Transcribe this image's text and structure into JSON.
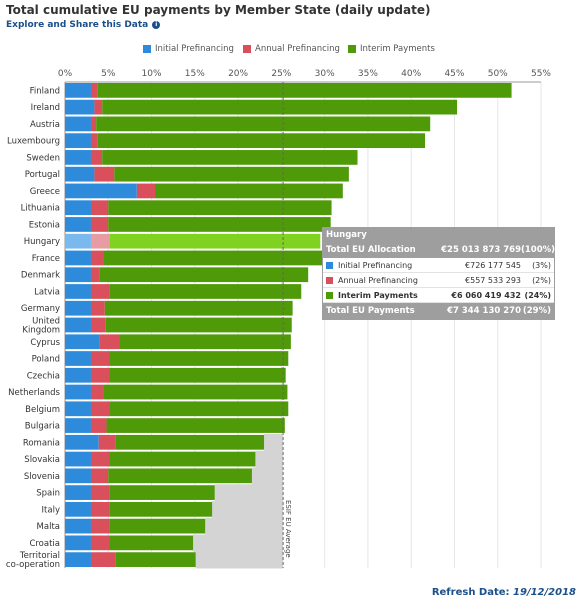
{
  "header": {
    "title": "Total cumulative EU payments by Member State (daily update)",
    "explore_link": "Explore and Share this Data",
    "info_icon": "info-icon"
  },
  "legend": [
    {
      "label": "Initial Prefinancing",
      "color": "#2e8bdc"
    },
    {
      "label": "Annual Prefinancing",
      "color": "#d9505c"
    },
    {
      "label": "Interim Payments",
      "color": "#4f9a09"
    }
  ],
  "chart_data": {
    "type": "bar",
    "orientation": "horizontal",
    "stacked": true,
    "x_tick_labels": [
      "0%",
      "5%",
      "10%",
      "15%",
      "20%",
      "25%",
      "30%",
      "35%",
      "40%",
      "45%",
      "50%",
      "55%"
    ],
    "xlim": [
      0,
      55
    ],
    "categories": [
      "Finland",
      "Ireland",
      "Austria",
      "Luxembourg",
      "Sweden",
      "Portugal",
      "Greece",
      "Lithuania",
      "Estonia",
      "Hungary",
      "France",
      "Denmark",
      "Latvia",
      "Germany",
      "United Kingdom",
      "Cyprus",
      "Poland",
      "Czechia",
      "Netherlands",
      "Belgium",
      "Bulgaria",
      "Romania",
      "Slovakia",
      "Slovenia",
      "Spain",
      "Italy",
      "Malta",
      "Croatia",
      "Territorial co-operation"
    ],
    "series": [
      {
        "name": "Initial Prefinancing",
        "values": [
          3.0,
          3.4,
          3.0,
          3.0,
          3.0,
          3.4,
          8.3,
          3.0,
          3.0,
          3.0,
          3.0,
          3.0,
          3.0,
          3.0,
          3.0,
          4.0,
          3.0,
          3.0,
          3.0,
          3.0,
          3.0,
          3.9,
          3.0,
          3.0,
          3.0,
          3.0,
          3.0,
          3.0,
          3.0
        ]
      },
      {
        "name": "Annual Prefinancing",
        "values": [
          0.8,
          0.9,
          0.6,
          0.8,
          1.3,
          2.3,
          2.1,
          2.0,
          2.0,
          2.2,
          1.4,
          1.0,
          2.1,
          1.6,
          1.7,
          2.3,
          2.2,
          2.2,
          1.4,
          2.2,
          1.8,
          1.9,
          2.2,
          2.0,
          2.1,
          2.1,
          2.1,
          2.2,
          2.8
        ]
      },
      {
        "name": "Interim Payments",
        "values": [
          47.8,
          41.0,
          38.6,
          37.8,
          29.5,
          27.1,
          21.7,
          25.8,
          25.7,
          24.3,
          25.3,
          24.1,
          22.2,
          21.7,
          21.5,
          19.8,
          20.6,
          20.3,
          21.3,
          20.6,
          20.6,
          17.2,
          16.8,
          16.6,
          12.2,
          11.9,
          11.1,
          9.6,
          9.3
        ]
      }
    ],
    "average": {
      "label": "ESIF EU Average",
      "value": 25.2
    },
    "highlighted_category": "Hungary"
  },
  "tooltip": {
    "name": "Hungary",
    "total_allocation_label": "Total EU Allocation",
    "total_allocation_value": "€25 013 873 769",
    "total_allocation_pct": "(100%)",
    "rows": [
      {
        "label": "Initial Prefinancing",
        "value": "€726 177 545",
        "pct": "(3%)"
      },
      {
        "label": "Annual Prefinancing",
        "value": "€557 533 293",
        "pct": "(2%)"
      },
      {
        "label": "Interim Payments",
        "value": "€6 060 419 432",
        "pct": "(24%)"
      }
    ],
    "total_payments_label": "Total EU Payments",
    "total_payments_value": "€7 344 130 270",
    "total_payments_pct": "(29%)"
  },
  "footer": {
    "refresh_label": "Refresh Date: ",
    "refresh_date": "19/12/2018"
  }
}
